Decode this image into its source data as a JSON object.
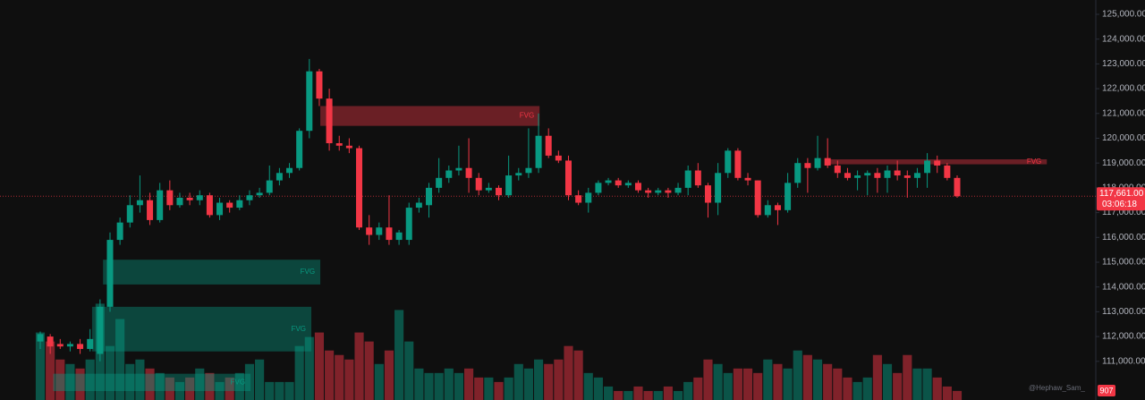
{
  "chart_data": {
    "type": "candlestick",
    "open": [
      111800,
      112000,
      111700,
      111600,
      111700,
      111500,
      111300,
      113200,
      115900,
      116600,
      117300,
      117500,
      116700,
      117900,
      117300,
      117600,
      117500,
      117700,
      116900,
      117400,
      117200,
      117500,
      117700,
      117800,
      118300,
      118600,
      118800,
      120300,
      122700,
      121600,
      119800,
      119700,
      119600,
      116400,
      116100,
      116400,
      115900,
      115900,
      117200,
      117300,
      118000,
      118400,
      118700,
      118800,
      118400,
      117900,
      118000,
      117700,
      118500,
      118600,
      118800,
      120100,
      119300,
      119100,
      117700,
      117400,
      117800,
      118200,
      118300,
      118100,
      118200,
      117900,
      117800,
      117900,
      117800,
      118000,
      118700,
      118100,
      117400,
      118600,
      119500,
      118400,
      118300,
      116900,
      117300,
      117100,
      118200,
      119000,
      118800,
      119200,
      118900,
      118600,
      118400,
      118500,
      118600,
      118400,
      118700,
      118500,
      118400,
      118600,
      119100,
      118900,
      118400
    ],
    "high": [
      112200,
      112100,
      111900,
      111800,
      111900,
      112300,
      113500,
      116200,
      116800,
      117700,
      118500,
      117800,
      118200,
      118300,
      117800,
      117800,
      117900,
      117800,
      117600,
      117500,
      117700,
      117900,
      118000,
      118900,
      118800,
      119000,
      120400,
      123200,
      122800,
      122000,
      120100,
      120000,
      119700,
      116900,
      116600,
      117700,
      116300,
      117400,
      117600,
      118200,
      119200,
      118900,
      119700,
      120000,
      118600,
      118200,
      118100,
      119300,
      118800,
      120400,
      121000,
      120400,
      119500,
      119300,
      117900,
      118000,
      118300,
      118400,
      118400,
      118300,
      118300,
      118000,
      118000,
      118000,
      118200,
      118900,
      119000,
      118200,
      119000,
      119600,
      119600,
      118600,
      118300,
      117500,
      117400,
      118600,
      119200,
      119200,
      120100,
      120000,
      119100,
      118800,
      118700,
      118700,
      118800,
      118900,
      119100,
      118700,
      118800,
      119400,
      119300,
      119000,
      118500
    ],
    "low": [
      111500,
      111300,
      111500,
      111400,
      111300,
      111400,
      111000,
      113000,
      115700,
      116400,
      117000,
      116500,
      116600,
      117100,
      117200,
      117300,
      117300,
      116800,
      116700,
      117000,
      117100,
      117300,
      117600,
      117700,
      118100,
      118400,
      118700,
      120000,
      121300,
      119500,
      119500,
      119400,
      116300,
      115700,
      115900,
      115700,
      115700,
      115700,
      117000,
      116800,
      117800,
      118200,
      118500,
      117800,
      117700,
      117800,
      117500,
      117600,
      118300,
      118400,
      118600,
      119200,
      119000,
      117500,
      117300,
      117000,
      117700,
      118100,
      118000,
      118000,
      117800,
      117600,
      117700,
      117600,
      117700,
      117700,
      118000,
      116800,
      116900,
      118400,
      118300,
      118100,
      116800,
      116800,
      116500,
      117000,
      118000,
      117800,
      118700,
      118800,
      118400,
      118300,
      117900,
      117700,
      117800,
      117800,
      118300,
      117600,
      118000,
      118000,
      118600,
      118300,
      117600
    ],
    "close": [
      112100,
      111600,
      111600,
      111700,
      111500,
      111900,
      113200,
      115900,
      116600,
      117300,
      117500,
      116700,
      117900,
      117300,
      117600,
      117500,
      117700,
      116900,
      117400,
      117200,
      117500,
      117700,
      117800,
      118300,
      118600,
      118800,
      120300,
      122700,
      121600,
      119800,
      119700,
      119600,
      116400,
      116100,
      116400,
      115900,
      116200,
      117200,
      117400,
      118000,
      118400,
      118700,
      118800,
      118400,
      117900,
      118000,
      117700,
      118500,
      118600,
      118800,
      120100,
      119300,
      119100,
      117700,
      117400,
      117800,
      118200,
      118300,
      118100,
      118200,
      117900,
      117800,
      117900,
      117800,
      118000,
      118700,
      118100,
      117400,
      118600,
      119500,
      118400,
      118300,
      116900,
      117300,
      117100,
      118200,
      119000,
      118800,
      119200,
      118900,
      118600,
      118400,
      118500,
      118600,
      118400,
      118700,
      118500,
      118400,
      118600,
      119100,
      118900,
      118400,
      117661
    ],
    "volume": [
      6750,
      5850,
      4050,
      3600,
      3150,
      4050,
      9630,
      5400,
      8100,
      3600,
      4050,
      3150,
      2700,
      2250,
      1800,
      2250,
      3150,
      2700,
      1800,
      2250,
      2700,
      3600,
      4050,
      1800,
      1800,
      1800,
      5400,
      6300,
      6750,
      4950,
      4500,
      4050,
      6750,
      5850,
      3600,
      4950,
      9000,
      5850,
      3150,
      2700,
      2700,
      3150,
      2700,
      3150,
      2250,
      2250,
      1800,
      2250,
      3600,
      3150,
      4050,
      3600,
      4050,
      5400,
      4950,
      2700,
      2250,
      1350,
      900,
      900,
      1350,
      900,
      900,
      1350,
      900,
      1800,
      2250,
      4050,
      3600,
      2700,
      3150,
      3150,
      2700,
      4050,
      3600,
      3150,
      4950,
      4500,
      4050,
      3600,
      3150,
      2250,
      1800,
      2250,
      4500,
      3600,
      2700,
      4500,
      3150,
      3150,
      2250,
      1350,
      907
    ],
    "vlim": [
      0,
      40000
    ],
    "up_color": "#089981",
    "down_color": "#f23645",
    "ylim": [
      109440,
      125578
    ],
    "yticks": [
      {
        "value": 111000,
        "label": "111,000.00"
      },
      {
        "value": 112000,
        "label": "112,000.00"
      },
      {
        "value": 113000,
        "label": "113,000.00"
      },
      {
        "value": 114000,
        "label": "114,000.00"
      },
      {
        "value": 115000,
        "label": "115,000.00"
      },
      {
        "value": 116000,
        "label": "116,000.00"
      },
      {
        "value": 117000,
        "label": "117,000.00"
      },
      {
        "value": 118000,
        "label": "118,000.00"
      },
      {
        "value": 119000,
        "label": "119,000.00"
      },
      {
        "value": 120000,
        "label": "120,000.00"
      },
      {
        "value": 121000,
        "label": "121,000.00"
      },
      {
        "value": 122000,
        "label": "122,000.00"
      },
      {
        "value": 123000,
        "label": "123,000.00"
      },
      {
        "value": 124000,
        "label": "124,000.00"
      },
      {
        "value": 125000,
        "label": "125,000.00"
      }
    ],
    "zones": [
      {
        "label": "FVG",
        "top": 115100,
        "bottom": 114100,
        "color": "#089981"
      },
      {
        "label": "FVG",
        "top": 113200,
        "bottom": 111400,
        "color": "#089981"
      },
      {
        "label": "FVG",
        "top": 110500,
        "bottom": 109800,
        "color": "#089981"
      },
      {
        "label": "FVG",
        "top": 121300,
        "bottom": 120500,
        "color": "#f23645"
      },
      {
        "label": "FVG",
        "top": 119150,
        "bottom": 118950,
        "color": "#f23645"
      }
    ],
    "last_price_label": "117,661.00",
    "countdown": "03:06:18",
    "watermark": "@Hephaw_Sam_"
  }
}
